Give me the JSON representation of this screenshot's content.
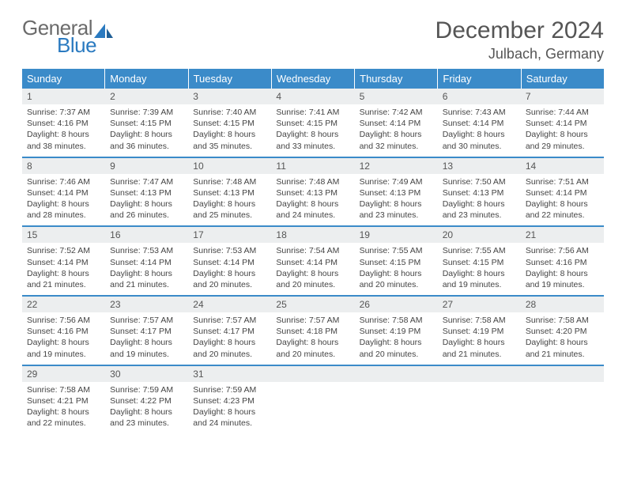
{
  "brand": {
    "line1": "General",
    "line2": "Blue"
  },
  "header": {
    "title": "December 2024",
    "location": "Julbach, Germany"
  },
  "colors": {
    "header_bg": "#3b8bc9",
    "header_text": "#ffffff",
    "daynum_bg": "#eceeef",
    "text": "#444444",
    "rule": "#3b8bc9"
  },
  "dayNames": [
    "Sunday",
    "Monday",
    "Tuesday",
    "Wednesday",
    "Thursday",
    "Friday",
    "Saturday"
  ],
  "weeks": [
    [
      {
        "n": "1",
        "sr": "7:37 AM",
        "ss": "4:16 PM",
        "dl": "8 hours and 38 minutes."
      },
      {
        "n": "2",
        "sr": "7:39 AM",
        "ss": "4:15 PM",
        "dl": "8 hours and 36 minutes."
      },
      {
        "n": "3",
        "sr": "7:40 AM",
        "ss": "4:15 PM",
        "dl": "8 hours and 35 minutes."
      },
      {
        "n": "4",
        "sr": "7:41 AM",
        "ss": "4:15 PM",
        "dl": "8 hours and 33 minutes."
      },
      {
        "n": "5",
        "sr": "7:42 AM",
        "ss": "4:14 PM",
        "dl": "8 hours and 32 minutes."
      },
      {
        "n": "6",
        "sr": "7:43 AM",
        "ss": "4:14 PM",
        "dl": "8 hours and 30 minutes."
      },
      {
        "n": "7",
        "sr": "7:44 AM",
        "ss": "4:14 PM",
        "dl": "8 hours and 29 minutes."
      }
    ],
    [
      {
        "n": "8",
        "sr": "7:46 AM",
        "ss": "4:14 PM",
        "dl": "8 hours and 28 minutes."
      },
      {
        "n": "9",
        "sr": "7:47 AM",
        "ss": "4:13 PM",
        "dl": "8 hours and 26 minutes."
      },
      {
        "n": "10",
        "sr": "7:48 AM",
        "ss": "4:13 PM",
        "dl": "8 hours and 25 minutes."
      },
      {
        "n": "11",
        "sr": "7:48 AM",
        "ss": "4:13 PM",
        "dl": "8 hours and 24 minutes."
      },
      {
        "n": "12",
        "sr": "7:49 AM",
        "ss": "4:13 PM",
        "dl": "8 hours and 23 minutes."
      },
      {
        "n": "13",
        "sr": "7:50 AM",
        "ss": "4:13 PM",
        "dl": "8 hours and 23 minutes."
      },
      {
        "n": "14",
        "sr": "7:51 AM",
        "ss": "4:14 PM",
        "dl": "8 hours and 22 minutes."
      }
    ],
    [
      {
        "n": "15",
        "sr": "7:52 AM",
        "ss": "4:14 PM",
        "dl": "8 hours and 21 minutes."
      },
      {
        "n": "16",
        "sr": "7:53 AM",
        "ss": "4:14 PM",
        "dl": "8 hours and 21 minutes."
      },
      {
        "n": "17",
        "sr": "7:53 AM",
        "ss": "4:14 PM",
        "dl": "8 hours and 20 minutes."
      },
      {
        "n": "18",
        "sr": "7:54 AM",
        "ss": "4:14 PM",
        "dl": "8 hours and 20 minutes."
      },
      {
        "n": "19",
        "sr": "7:55 AM",
        "ss": "4:15 PM",
        "dl": "8 hours and 20 minutes."
      },
      {
        "n": "20",
        "sr": "7:55 AM",
        "ss": "4:15 PM",
        "dl": "8 hours and 19 minutes."
      },
      {
        "n": "21",
        "sr": "7:56 AM",
        "ss": "4:16 PM",
        "dl": "8 hours and 19 minutes."
      }
    ],
    [
      {
        "n": "22",
        "sr": "7:56 AM",
        "ss": "4:16 PM",
        "dl": "8 hours and 19 minutes."
      },
      {
        "n": "23",
        "sr": "7:57 AM",
        "ss": "4:17 PM",
        "dl": "8 hours and 19 minutes."
      },
      {
        "n": "24",
        "sr": "7:57 AM",
        "ss": "4:17 PM",
        "dl": "8 hours and 20 minutes."
      },
      {
        "n": "25",
        "sr": "7:57 AM",
        "ss": "4:18 PM",
        "dl": "8 hours and 20 minutes."
      },
      {
        "n": "26",
        "sr": "7:58 AM",
        "ss": "4:19 PM",
        "dl": "8 hours and 20 minutes."
      },
      {
        "n": "27",
        "sr": "7:58 AM",
        "ss": "4:19 PM",
        "dl": "8 hours and 21 minutes."
      },
      {
        "n": "28",
        "sr": "7:58 AM",
        "ss": "4:20 PM",
        "dl": "8 hours and 21 minutes."
      }
    ],
    [
      {
        "n": "29",
        "sr": "7:58 AM",
        "ss": "4:21 PM",
        "dl": "8 hours and 22 minutes."
      },
      {
        "n": "30",
        "sr": "7:59 AM",
        "ss": "4:22 PM",
        "dl": "8 hours and 23 minutes."
      },
      {
        "n": "31",
        "sr": "7:59 AM",
        "ss": "4:23 PM",
        "dl": "8 hours and 24 minutes."
      },
      null,
      null,
      null,
      null
    ]
  ],
  "labels": {
    "sunrise": "Sunrise: ",
    "sunset": "Sunset: ",
    "daylight": "Daylight: "
  }
}
